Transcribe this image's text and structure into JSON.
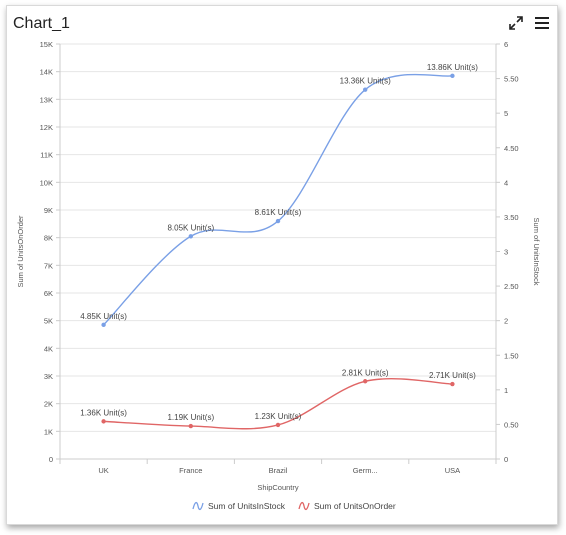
{
  "header": {
    "title": "Chart_1",
    "icons": [
      "expand-icon",
      "menu-icon"
    ]
  },
  "colors": {
    "units_in_stock": "#7aa0e6",
    "units_on_order": "#e06666",
    "axis": "#cccccc",
    "grid": "#e6e6e6",
    "text": "#555555"
  },
  "chart_data": {
    "type": "line",
    "xlabel": "ShipCountry",
    "ylabel": "Sum of UnitsOnOrder",
    "y2label": "Sum of UnitsInStock",
    "categories": [
      "UK",
      "France",
      "Brazil",
      "Germ...",
      "USA"
    ],
    "ylim": [
      0,
      15000
    ],
    "yticks": [
      "0",
      "1K",
      "2K",
      "3K",
      "4K",
      "5K",
      "6K",
      "7K",
      "8K",
      "9K",
      "10K",
      "11K",
      "12K",
      "13K",
      "14K",
      "15K"
    ],
    "y2lim": [
      0,
      6
    ],
    "y2ticks": [
      "0",
      "0.50",
      "1",
      "1.50",
      "2",
      "2.50",
      "3",
      "3.50",
      "4",
      "4.50",
      "5",
      "5.50",
      "6"
    ],
    "grid": true,
    "legend_position": "bottom",
    "series": [
      {
        "name": "Sum of UnitsInStock",
        "axis": "y2",
        "values": [
          1.94,
          3.22,
          3.44,
          5.34,
          5.54
        ],
        "labels": [
          "4.85K Unit(s)",
          "8.05K Unit(s)",
          "8.61K Unit(s)",
          "13.36K Unit(s)",
          "13.86K Unit(s)"
        ]
      },
      {
        "name": "Sum of UnitsOnOrder",
        "axis": "y",
        "values": [
          1360,
          1190,
          1230,
          2810,
          2710
        ],
        "labels": [
          "1.36K Unit(s)",
          "1.19K Unit(s)",
          "1.23K Unit(s)",
          "2.81K Unit(s)",
          "2.71K Unit(s)"
        ]
      }
    ]
  }
}
